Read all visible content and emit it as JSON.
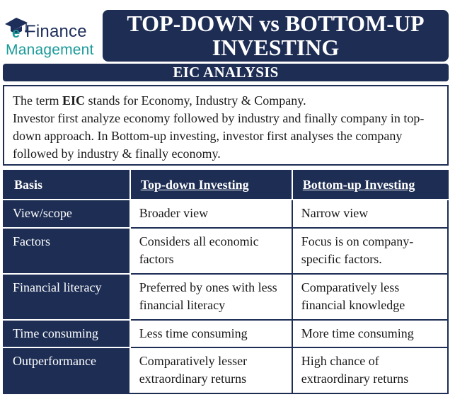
{
  "logo": {
    "line1": "Finance",
    "line2": "Management",
    "icon": "graduation-cap-e-icon",
    "colors": {
      "navy": "#1e2e5a",
      "teal": "#1a9a9a"
    }
  },
  "header": {
    "title_line1": "TOP-DOWN vs BOTTOM-UP",
    "title_line2": "INVESTING",
    "subtitle": "EIC ANALYSIS"
  },
  "intro": {
    "p1_before": "The term ",
    "p1_bold": "EIC",
    "p1_after": " stands for Economy, Industry & Company.",
    "p2": "Investor first analyze economy followed by industry and finally company in top-down approach. In Bottom-up investing, investor first analyses the company followed by industry & finally economy."
  },
  "table": {
    "headers": [
      "Basis",
      "Top-down Investing",
      "Bottom-up Investing"
    ],
    "rows": [
      {
        "basis": "View/scope",
        "top_down": "Broader view",
        "bottom_up": "Narrow view"
      },
      {
        "basis": "Factors",
        "top_down": "Considers all economic factors",
        "bottom_up": "Focus is on company-specific factors."
      },
      {
        "basis": "Financial literacy",
        "top_down": "Preferred by ones with less financial literacy",
        "bottom_up": "Comparatively less financial knowledge"
      },
      {
        "basis": "Time consuming",
        "top_down": "Less time consuming",
        "bottom_up": "More time consuming"
      },
      {
        "basis": "Outperformance",
        "top_down": "Comparatively lesser extraordinary returns",
        "bottom_up": "High chance of extraordinary returns"
      }
    ]
  },
  "colors": {
    "primary": "#1d2d54",
    "text": "#1a1a1a",
    "background": "#ffffff"
  }
}
